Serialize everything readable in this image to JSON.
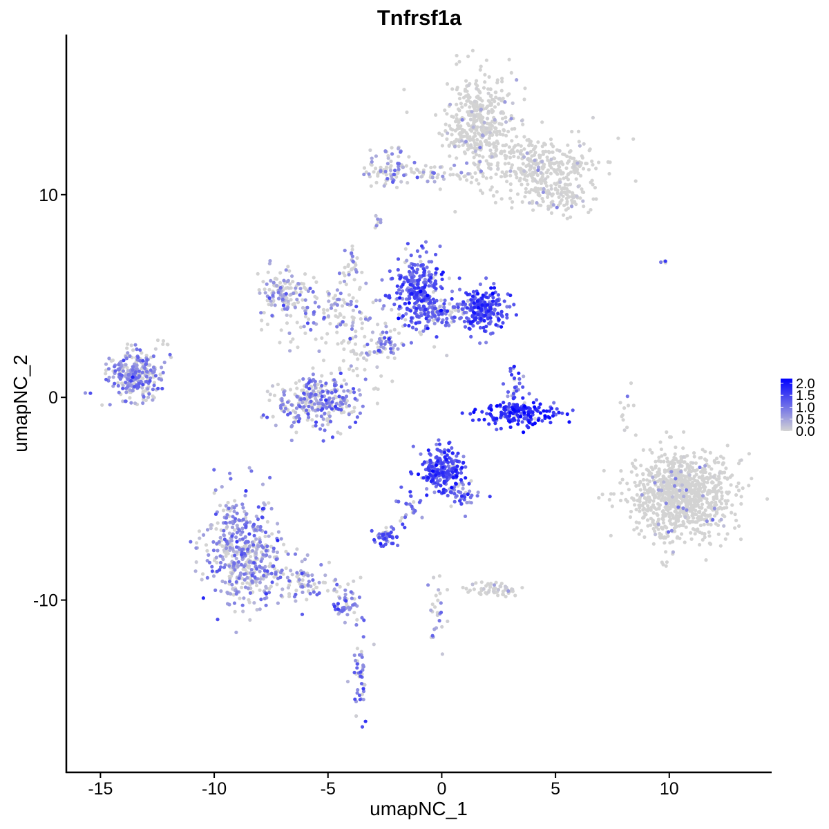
{
  "chart_data": {
    "type": "scatter",
    "title": "Tnfrsf1a",
    "xlabel": "umapNC_1",
    "ylabel": "umapNC_2",
    "xlim": [
      -16.5,
      14.5
    ],
    "ylim": [
      -18.5,
      17.9
    ],
    "x_ticks": [
      -15,
      -10,
      -5,
      0,
      5,
      10
    ],
    "x_tick_labels": [
      "-15",
      "-10",
      "-5",
      "0",
      "5",
      "10"
    ],
    "y_ticks": [
      -10,
      0,
      10
    ],
    "y_tick_labels": [
      "-10",
      "0",
      "10"
    ],
    "grid": false,
    "legend": {
      "position": "right",
      "type": "colorbar",
      "range": [
        0,
        2.2
      ],
      "breaks": [
        0.0,
        0.5,
        1.0,
        1.5,
        2.0
      ],
      "labels": [
        "0.0",
        "0.5",
        "1.0",
        "1.5",
        "2.0"
      ],
      "low_color": "#d3d3d3",
      "high_color": "#0000ff"
    },
    "colors": {
      "low": "#d3d3d3",
      "high": "#0000ff"
    },
    "value_name": "expression",
    "clusters": [
      {
        "cx": 1.7,
        "cy": 13.5,
        "sx": 0.8,
        "sy": 1.2,
        "n": 420,
        "mean": 0.15,
        "pexpr": 0.12
      },
      {
        "cx": 4.5,
        "cy": 11.4,
        "sx": 1.3,
        "sy": 0.7,
        "n": 320,
        "mean": 0.1,
        "pexpr": 0.08
      },
      {
        "cx": 5.0,
        "cy": 9.9,
        "sx": 0.9,
        "sy": 0.5,
        "n": 110,
        "mean": 0.2,
        "pexpr": 0.15
      },
      {
        "cx": -2.4,
        "cy": 11.3,
        "sx": 0.5,
        "sy": 0.6,
        "n": 70,
        "mean": 0.7,
        "pexpr": 0.55
      },
      {
        "cx": -0.5,
        "cy": 11.1,
        "sx": 1.0,
        "sy": 0.25,
        "n": 50,
        "mean": 0.5,
        "pexpr": 0.4
      },
      {
        "cx": -2.8,
        "cy": 8.6,
        "sx": 0.15,
        "sy": 0.15,
        "n": 8,
        "mean": 0.6,
        "pexpr": 0.6
      },
      {
        "cx": -1.0,
        "cy": 5.3,
        "sx": 0.55,
        "sy": 0.9,
        "n": 260,
        "mean": 1.3,
        "pexpr": 0.92
      },
      {
        "cx": 1.9,
        "cy": 4.3,
        "sx": 0.55,
        "sy": 0.55,
        "n": 200,
        "mean": 1.4,
        "pexpr": 0.95
      },
      {
        "cx": 0.0,
        "cy": 4.2,
        "sx": 1.1,
        "sy": 0.45,
        "n": 120,
        "mean": 1.0,
        "pexpr": 0.8
      },
      {
        "cx": -7.0,
        "cy": 5.3,
        "sx": 0.5,
        "sy": 0.5,
        "n": 110,
        "mean": 0.5,
        "pexpr": 0.4
      },
      {
        "cx": -5.0,
        "cy": 4.3,
        "sx": 1.2,
        "sy": 0.8,
        "n": 140,
        "mean": 0.7,
        "pexpr": 0.5
      },
      {
        "cx": -4.0,
        "cy": 6.6,
        "sx": 0.2,
        "sy": 0.6,
        "n": 25,
        "mean": 0.6,
        "pexpr": 0.5
      },
      {
        "cx": -2.5,
        "cy": 2.6,
        "sx": 0.35,
        "sy": 0.35,
        "n": 40,
        "mean": 0.9,
        "pexpr": 0.7
      },
      {
        "cx": -3.5,
        "cy": 2.2,
        "sx": 1.4,
        "sy": 0.8,
        "n": 60,
        "mean": 0.2,
        "pexpr": 0.2
      },
      {
        "cx": -5.5,
        "cy": -0.3,
        "sx": 0.9,
        "sy": 0.6,
        "n": 300,
        "mean": 0.8,
        "pexpr": 0.6
      },
      {
        "cx": -13.5,
        "cy": 1.1,
        "sx": 0.6,
        "sy": 0.6,
        "n": 260,
        "mean": 0.8,
        "pexpr": 0.7
      },
      {
        "cx": -12.2,
        "cy": 2.4,
        "sx": 0.3,
        "sy": 0.3,
        "n": 10,
        "mean": 0.4,
        "pexpr": 0.4
      },
      {
        "cx": 3.4,
        "cy": -0.8,
        "sx": 0.8,
        "sy": 0.3,
        "n": 180,
        "mean": 1.6,
        "pexpr": 0.98
      },
      {
        "cx": 3.2,
        "cy": 0.7,
        "sx": 0.25,
        "sy": 0.5,
        "n": 25,
        "mean": 1.2,
        "pexpr": 0.9
      },
      {
        "cx": 0.0,
        "cy": -3.6,
        "sx": 0.5,
        "sy": 0.55,
        "n": 220,
        "mean": 1.4,
        "pexpr": 0.95
      },
      {
        "cx": 1.0,
        "cy": -4.8,
        "sx": 0.5,
        "sy": 0.4,
        "n": 40,
        "mean": 1.0,
        "pexpr": 0.8
      },
      {
        "cx": -1.5,
        "cy": -5.5,
        "sx": 0.3,
        "sy": 0.6,
        "n": 25,
        "mean": 1.0,
        "pexpr": 0.8
      },
      {
        "cx": -2.4,
        "cy": -6.9,
        "sx": 0.35,
        "sy": 0.2,
        "n": 45,
        "mean": 1.1,
        "pexpr": 0.85
      },
      {
        "cx": 10.5,
        "cy": -4.8,
        "sx": 1.1,
        "sy": 1.1,
        "n": 950,
        "mean": 0.5,
        "pexpr": 0.04
      },
      {
        "cx": -8.6,
        "cy": -7.6,
        "sx": 0.85,
        "sy": 1.3,
        "n": 480,
        "mean": 0.7,
        "pexpr": 0.7
      },
      {
        "cx": -6.0,
        "cy": -9.2,
        "sx": 1.0,
        "sy": 0.5,
        "n": 90,
        "mean": 0.6,
        "pexpr": 0.5
      },
      {
        "cx": -4.2,
        "cy": -10.3,
        "sx": 0.3,
        "sy": 0.3,
        "n": 40,
        "mean": 0.9,
        "pexpr": 0.8
      },
      {
        "cx": -3.6,
        "cy": -13.5,
        "sx": 0.2,
        "sy": 1.2,
        "n": 45,
        "mean": 0.9,
        "pexpr": 0.8
      },
      {
        "cx": 2.2,
        "cy": -9.5,
        "sx": 0.6,
        "sy": 0.2,
        "n": 60,
        "mean": 0.3,
        "pexpr": 0.2
      },
      {
        "cx": -0.2,
        "cy": -10.6,
        "sx": 0.2,
        "sy": 0.9,
        "n": 25,
        "mean": 0.6,
        "pexpr": 0.5
      },
      {
        "cx": 8.1,
        "cy": -0.5,
        "sx": 0.2,
        "sy": 0.6,
        "n": 12,
        "mean": 0.3,
        "pexpr": 0.1
      },
      {
        "cx": 9.8,
        "cy": 6.7,
        "sx": 0.1,
        "sy": 0.05,
        "n": 4,
        "mean": 1.5,
        "pexpr": 0.4
      }
    ]
  }
}
